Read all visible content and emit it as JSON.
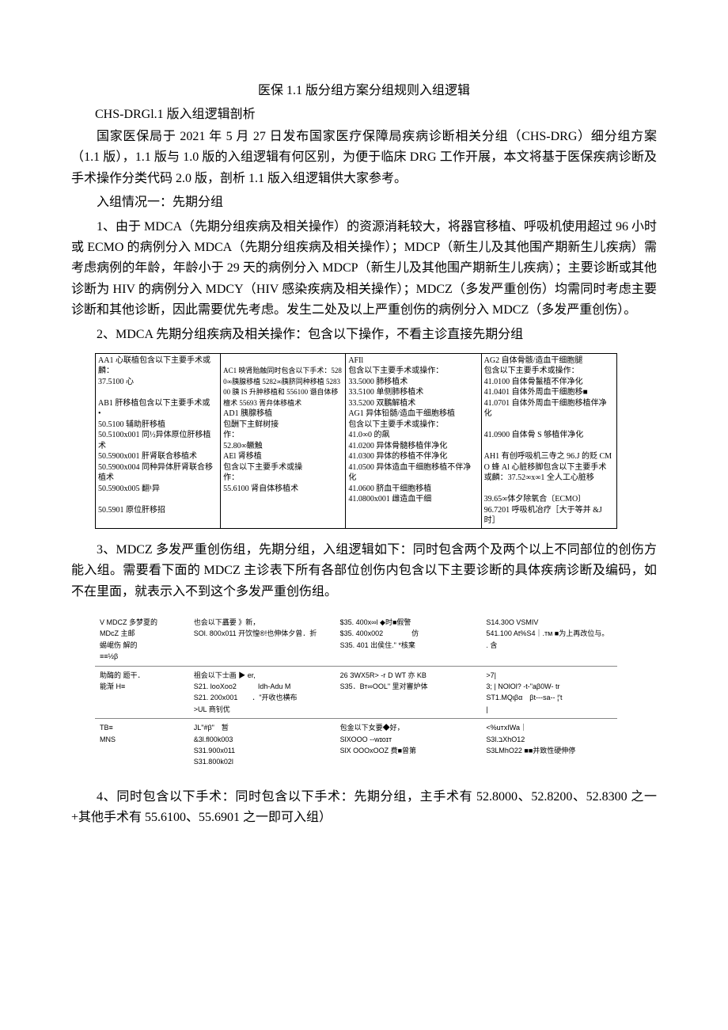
{
  "title": "医保 1.1 版分组方案分组规则入组逻辑",
  "subtitle": "CHS-DRGl.1 版入组逻辑剖析",
  "p1": "国家医保局于 2021 年 5 月 27 日发布国家医疗保障局疾病诊断相关分组（CHS-DRG）细分组方案（1.1 版），1.1 版与 1.0 版的入组逻辑有何区别，为便于临床 DRG 工作开展，本文将基于医保疾病诊断及手术操作分类代码 2.0 版，剖析 1.1 版入组逻辑供大家参考。",
  "p2": "入组情况一：先期分组",
  "p3": "1、由于 MDCA（先期分组疾病及相关操作）的资源消耗较大，将器官移植、呼吸机使用超过 96 小时或 ECMO 的病例分入 MDCA（先期分组疾病及相关操作）；MDCP（新生儿及其他围产期新生儿疾病）需考虑病例的年龄，年龄小于 29 天的病例分入 MDCP（新生儿及其他围产期新生儿疾病）；主要诊断或其他诊断为 HIV 的病例分入 MDCY（HIV 感染疾病及相关操作）；MDCZ（多发严重创伤）均需同时考虑主要诊断和其他诊断，因此需要优先考虑。发生二处及以上严重创伤的病例分入 MDCZ（多发严重创伤）。",
  "p4": "2、MDCA 先期分组疾病及相关操作：包含以下操作，不看主诊直接先期分组",
  "table1": {
    "c1a": "AA1 心联植包含以下主要手术或麟：",
    "c1b": "37.5100 心",
    "c1c": "AB1 肝移植包含以下主要手术或",
    "c1d": "•",
    "c1e": "50.5100 辅助肝移植",
    "c1f": "50.5100x001 同½异体原位肝移植术",
    "c1g": "50.5900x001 肝肾联合移植术",
    "c1h": "50.5900x004 同种异体肝肾联合移植术",
    "c1i": "50.5900x005 翻¹异",
    "c1j": "50.5901 原位肝移招",
    "c2a": "AC1 映肾贻触同时包含以下手术：5280∞胰腺移植 5282∞胰脐同种移植 528300 胰 IS 升肿移植和 556100 谮自体移檀术 55693 胥弁体移植术",
    "c2b": "AD1 胰腺移植",
    "c2c": "包酬下主鲜树接",
    "c2d": "作：",
    "c2e": "52.80∞鳜触",
    "c2f": "AEl 肾移植",
    "c2g": "包含以下主要手术或操",
    "c2h": "作：",
    "c2i": "55.6100 肾自体移植术",
    "c3a": "AFIl",
    "c3b": "包含以下主要手术或操作：",
    "c3c": "33.5000 肺移植术",
    "c3d": "33.5100 单侧肺移植术",
    "c3e": "33.5200 双鵬解植术",
    "c3f": "AG1 异体铅髄/造血干细胞移植",
    "c3g": "包含以下主要手术或操作：",
    "c3h": "41.0∞0 的飙",
    "c3i": "41.0200 异体骨髓移植伴净化",
    "c3j": "41.0300 异体的移植不伴净化",
    "c3k": "41.0500 异体造血干细胞移植不伴净化",
    "c3l": "41.0600 脐血干细胞移植",
    "c3m": "41.0800x001 雌造血干细",
    "c4a": "AG2 自体骨骸/造血干细胞腿",
    "c4b": "包含以下主要手术或操作：",
    "c4c": "41.0100 自体骨鬣植不伴净化",
    "c4d": "41.0401 自体外周血干细胞移■",
    "c4e": "41.0701 自体外周血干细胞移植伴净化",
    "c4f": "41.0900 自体骨 S 够植伴净化",
    "c4g": "AH1 有创呼吸机三寺之 96.J 的贬 CMO 蜂 Al 心脏移脚包含以下主要手术或麟：37.52∞x∞1 全人工心脏移",
    "c4h": "39.65∞体夕除氧合〔ECMO〕",
    "c4i": "96.7201 呼吸机冶疗［大于等并 &J 时］"
  },
  "p5": "3、MDCZ 多发严重创伤组，先期分组，入组逻辑如下：同时包含两个及两个以上不同部位的创伤方能入组。需要看下面的 MDCZ 主诊表下所有各部位创伤内包含以下主要诊断的具体疾病诊断及编码，如不在里面，就表示入不到这个多发严重创伤组。",
  "table2": {
    "r1c1": "V MDCZ 多梦夏的\nMDcZ 主邮\n蜴崐伤 解的\n≡≡½β",
    "r1c2": "也会以下靐要 》新，\nSOl. 800x011 开饮惶®!也伸体夕曾．折",
    "r1c3": "$35. 400x∞l ◆时■假警\n$35. 400x002　　　　仿\nS35. 401 出侯住.\"  *核枽",
    "r1c4": "S14.30O VSMIV\n541.100 At%<ttS∏\nS4｜.тм ■为上再改位与。\n. 含",
    "r2c1": "助酶的 题干．\n能渐 H≡",
    "r2c2": "祖会以下士画 ▶ er,\nS21. looXoo2　　　Idh-Adu M\nS21. 200x001　　．\"开收也横布\n>UL 商钊优",
    "r2c3": "26 ЗWX5R> -г D WT 亦 KB\nS35．Вт∞OOL\" 里对審炉体",
    "r2c4": ">7|\n3;  | NOlOl? -t-\"aβ0W- tr\nST1.MQιβα　βt---sa-- ¦'t\n|",
    "r3c1": "TB≡\nMNS",
    "r3c2": "JL\"#β\"　暂\n&3l.fl00k003\nS31.900x011\nS31.800k02l",
    "r3c3": "包金以下女要◆好，\nSlXOOO --wɪоɪт\nSlX OOOxOOZ 费■曾第",
    "r3c4": "<%uтхIWa｜\nS3l.בXhO12\nS3LMhO22 ■■并致性硬伸停"
  },
  "p6": "4、同时包含以下手术：同时包含以下手术：先期分组，主手术有 52.8000、52.8200、52.8300 之一+其他手术有 55.6100、55.6901 之一即可入组）"
}
